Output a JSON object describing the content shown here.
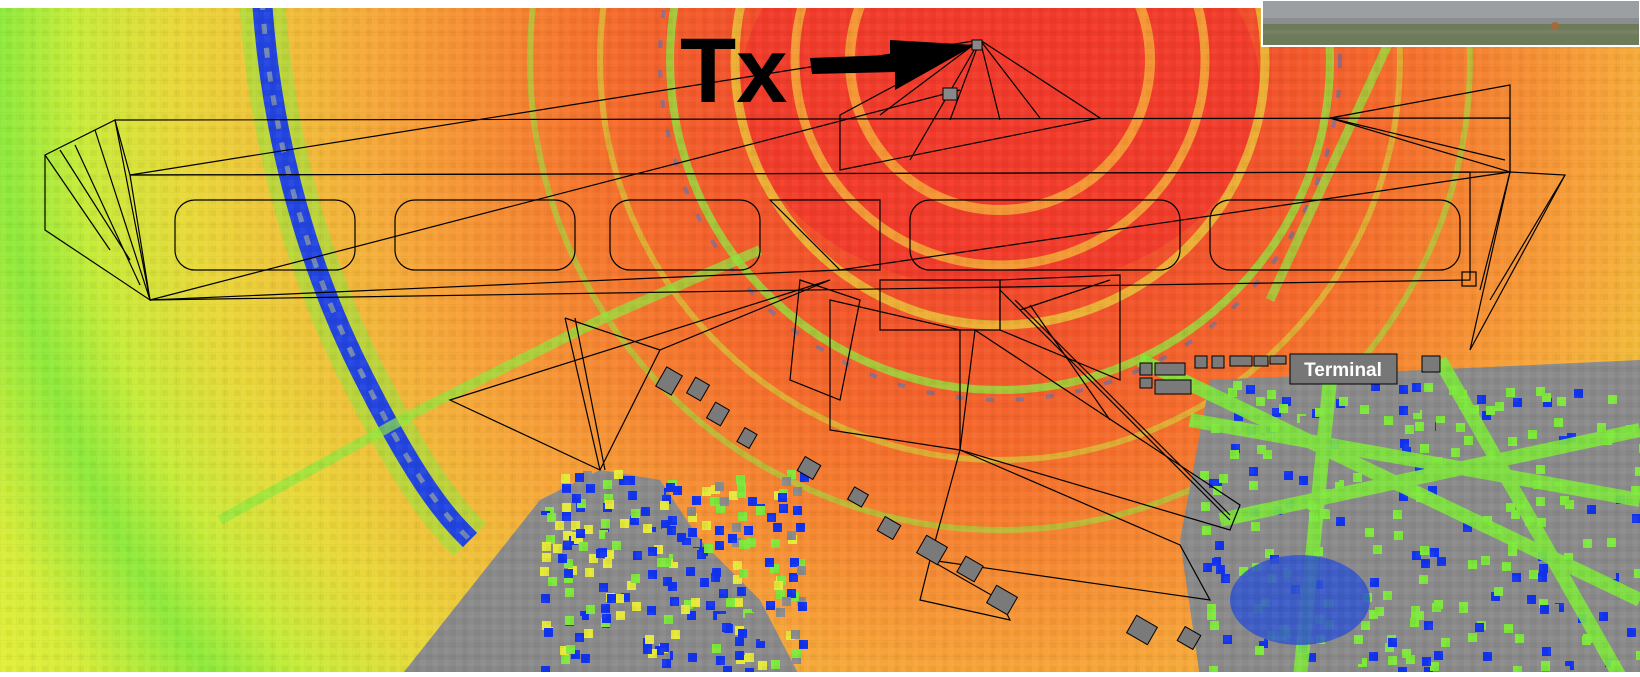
{
  "labels": {
    "tx": "Tx",
    "terminal": "Terminal"
  },
  "colors": {
    "signal_strong": "#f23a2b",
    "signal_high": "#f66e2c",
    "signal_mid": "#f7a83a",
    "signal_low": "#e6e93a",
    "signal_weak": "#7fe83d",
    "signal_poor": "#1133ee",
    "obstruction": "#8a8a8a",
    "outline": "#000000",
    "label_box": "#777777",
    "label_text": "#ffffff"
  },
  "photo_inset": {
    "description_icon": "photo-thumbnail"
  }
}
